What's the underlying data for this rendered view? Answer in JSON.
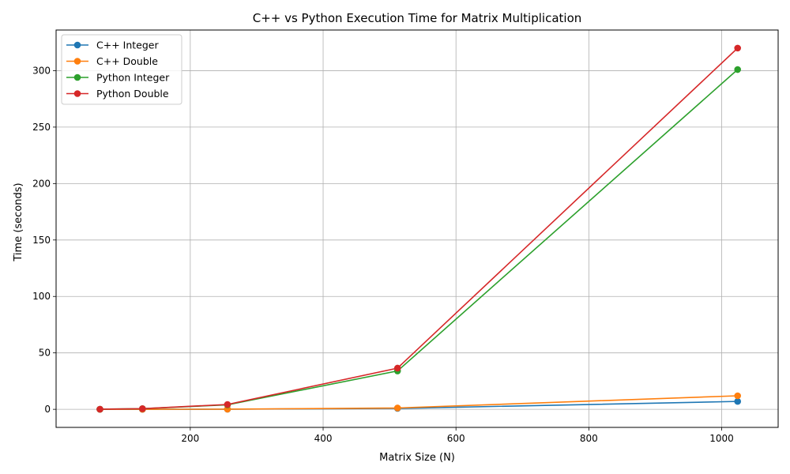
{
  "chart_data": {
    "type": "line",
    "title": "C++ vs Python Execution Time for Matrix Multiplication",
    "xlabel": "Matrix Size (N)",
    "ylabel": "Time (seconds)",
    "xlim": [
      -2,
      1085
    ],
    "ylim": [
      -16,
      336
    ],
    "xticks": [
      200,
      400,
      600,
      800,
      1000
    ],
    "yticks": [
      0,
      50,
      100,
      150,
      200,
      250,
      300
    ],
    "grid": true,
    "legend_position": "top-left",
    "x": [
      64,
      128,
      256,
      512,
      1024
    ],
    "series": [
      {
        "name": "C++ Integer",
        "color": "#1f77b4",
        "values": [
          0.001,
          0.01,
          0.1,
          0.8,
          7.0
        ]
      },
      {
        "name": "C++ Double",
        "color": "#ff7f0e",
        "values": [
          0.001,
          0.01,
          0.12,
          1.2,
          12.0
        ]
      },
      {
        "name": "Python Integer",
        "color": "#2ca02c",
        "values": [
          0.1,
          0.6,
          4.0,
          34.0,
          301.0
        ]
      },
      {
        "name": "Python Double",
        "color": "#d62728",
        "values": [
          0.1,
          0.6,
          4.3,
          36.5,
          320.0
        ]
      }
    ]
  }
}
